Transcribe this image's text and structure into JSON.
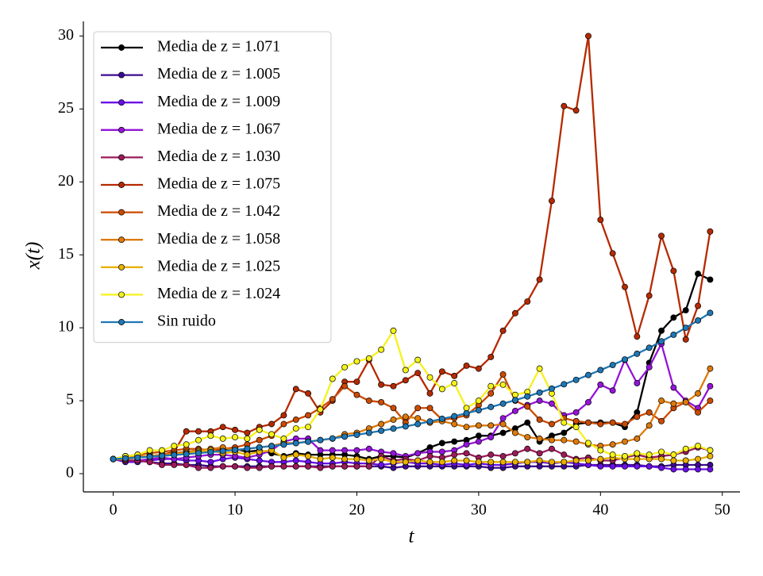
{
  "chart_data": {
    "type": "line",
    "xlabel": "t",
    "ylabel": "x(t)",
    "xlim": [
      -2.45,
      51.45
    ],
    "ylim": [
      -1.25,
      31
    ],
    "xticks": [
      0,
      10,
      20,
      30,
      40,
      50
    ],
    "yticks": [
      0,
      5,
      10,
      15,
      20,
      25,
      30
    ],
    "legend": "upper left",
    "x": [
      0,
      1,
      2,
      3,
      4,
      5,
      6,
      7,
      8,
      9,
      10,
      11,
      12,
      13,
      14,
      15,
      16,
      17,
      18,
      19,
      20,
      21,
      22,
      23,
      24,
      25,
      26,
      27,
      28,
      29,
      30,
      31,
      32,
      33,
      34,
      35,
      36,
      37,
      38,
      39,
      40,
      41,
      42,
      43,
      44,
      45,
      46,
      47,
      48,
      49
    ],
    "series": [
      {
        "name": "Media de z = 1.071",
        "color": "#000000",
        "values": [
          1,
          1.0,
          1.1,
          1.2,
          1.3,
          1.4,
          1.5,
          1.6,
          1.6,
          1.6,
          1.7,
          1.5,
          1.6,
          1.4,
          1.2,
          1.4,
          1.3,
          1.3,
          1.3,
          1.3,
          1.2,
          1.0,
          1.2,
          1.2,
          1.1,
          1.4,
          1.8,
          2.1,
          2.2,
          2.3,
          2.6,
          2.6,
          2.8,
          3.1,
          3.5,
          2.2,
          2.6,
          2.8,
          3.4,
          3.5,
          3.5,
          3.5,
          3.2,
          4.2,
          7.6,
          9.8,
          10.7,
          11.2,
          13.7,
          13.3
        ]
      },
      {
        "name": "Media de z = 1.005",
        "color": "#3d0a91",
        "values": [
          1,
          0.9,
          0.9,
          0.8,
          0.7,
          0.7,
          0.6,
          0.6,
          0.5,
          0.5,
          0.5,
          0.5,
          0.5,
          0.5,
          0.5,
          0.5,
          0.5,
          0.5,
          0.5,
          0.5,
          0.5,
          0.5,
          0.5,
          0.4,
          0.5,
          0.5,
          0.5,
          0.5,
          0.5,
          0.5,
          0.5,
          0.4,
          0.4,
          0.5,
          0.5,
          0.5,
          0.5,
          0.5,
          0.5,
          0.6,
          0.6,
          0.6,
          0.6,
          0.6,
          0.5,
          0.5,
          0.6,
          0.6,
          0.6,
          0.6
        ]
      },
      {
        "name": "Media de z = 1.009",
        "color": "#6a0ee8",
        "values": [
          1,
          0.8,
          0.8,
          0.9,
          1.0,
          1.0,
          0.9,
          0.9,
          0.8,
          1.0,
          1.1,
          1.0,
          0.9,
          0.8,
          0.8,
          0.9,
          0.8,
          0.7,
          0.7,
          0.8,
          0.7,
          0.7,
          0.6,
          0.7,
          0.8,
          0.7,
          0.7,
          0.6,
          0.7,
          0.6,
          0.7,
          0.6,
          0.6,
          0.7,
          0.8,
          0.8,
          0.7,
          0.8,
          0.7,
          0.6,
          0.5,
          0.5,
          0.5,
          0.5,
          0.5,
          0.4,
          0.3,
          0.3,
          0.3,
          0.3
        ]
      },
      {
        "name": "Media de z = 1.067",
        "color": "#9414d8",
        "values": [
          1,
          0.9,
          0.9,
          1.0,
          1.1,
          1.0,
          1.1,
          1.2,
          1.3,
          1.3,
          1.2,
          1.1,
          1.3,
          1.6,
          2.2,
          2.4,
          2.4,
          1.6,
          1.6,
          1.6,
          1.6,
          1.7,
          1.5,
          1.4,
          1.2,
          1.4,
          1.5,
          1.5,
          1.6,
          2.0,
          2.2,
          2.5,
          3.8,
          4.3,
          4.7,
          5.0,
          4.8,
          4.0,
          4.2,
          4.9,
          6.1,
          5.7,
          7.8,
          6.2,
          7.3,
          8.9,
          5.9,
          5.0,
          4.5,
          6.0
        ]
      },
      {
        "name": "Media de z = 1.030",
        "color": "#9b1b5a",
        "values": [
          1,
          0.9,
          0.9,
          0.8,
          0.6,
          0.6,
          0.6,
          0.4,
          0.4,
          0.5,
          0.5,
          0.4,
          0.4,
          0.5,
          0.5,
          0.5,
          0.5,
          0.4,
          0.5,
          0.5,
          0.5,
          0.5,
          1.2,
          0.9,
          1.0,
          0.9,
          1.2,
          1.1,
          1.3,
          1.4,
          1.1,
          1.3,
          1.2,
          1.4,
          1.7,
          1.4,
          1.7,
          1.3,
          1.0,
          1.1,
          0.9,
          0.9,
          1.1,
          1.3,
          1.1,
          1.2,
          1.3,
          1.5,
          1.8,
          1.6
        ]
      },
      {
        "name": "Media de z = 1.075",
        "color": "#b52a00",
        "values": [
          1,
          1.05,
          1.1,
          1.2,
          1.3,
          1.5,
          2.9,
          2.9,
          2.9,
          3.2,
          3.0,
          2.8,
          3.2,
          3.4,
          4.0,
          5.8,
          5.5,
          4.2,
          5.0,
          6.3,
          6.3,
          7.8,
          6.1,
          6.0,
          6.4,
          6.9,
          5.5,
          7.0,
          6.7,
          7.4,
          7.2,
          8.0,
          9.8,
          11.0,
          11.8,
          13.3,
          18.7,
          25.2,
          24.9,
          30.0,
          17.4,
          15.1,
          12.8,
          9.4,
          12.2,
          16.3,
          13.9,
          9.2,
          11.5,
          16.6
        ]
      },
      {
        "name": "Media de z = 1.042",
        "color": "#cc4a00",
        "values": [
          1,
          1.2,
          1.3,
          1.4,
          1.5,
          1.6,
          1.7,
          1.7,
          1.6,
          1.7,
          1.8,
          2.0,
          2.3,
          2.6,
          3.4,
          3.7,
          4.0,
          4.5,
          5.1,
          6.0,
          5.4,
          5.0,
          4.9,
          4.5,
          3.5,
          4.5,
          4.5,
          3.7,
          3.8,
          4.0,
          4.7,
          5.5,
          6.8,
          5.0,
          4.6,
          3.7,
          3.4,
          3.8,
          3.6,
          3.5,
          3.4,
          3.5,
          3.4,
          3.9,
          4.2,
          3.6,
          4.5,
          4.9,
          4.2,
          5.0
        ]
      },
      {
        "name": "Media de z = 1.058",
        "color": "#dc7a0a",
        "values": [
          1,
          1.1,
          1.2,
          1.2,
          1.3,
          1.4,
          1.5,
          1.6,
          1.7,
          1.8,
          1.6,
          1.7,
          1.8,
          1.9,
          2.1,
          2.1,
          2.2,
          2.3,
          2.4,
          2.7,
          2.8,
          3.1,
          3.4,
          3.7,
          3.9,
          3.8,
          3.5,
          3.6,
          3.4,
          3.2,
          3.3,
          3.3,
          3.4,
          2.8,
          2.5,
          2.4,
          2.3,
          2.3,
          2.2,
          2.0,
          1.9,
          2.0,
          2.2,
          2.4,
          3.3,
          5.0,
          4.8,
          4.9,
          5.5,
          7.2
        ]
      },
      {
        "name": "Media de z = 1.025",
        "color": "#e8b000",
        "values": [
          1,
          1.0,
          1.1,
          1.2,
          1.2,
          1.3,
          1.4,
          1.5,
          1.6,
          1.4,
          1.5,
          1.3,
          1.5,
          1.6,
          1.1,
          1.3,
          1.2,
          1.0,
          1.1,
          1.0,
          1.0,
          0.9,
          1.0,
          0.8,
          0.8,
          0.9,
          0.8,
          0.8,
          0.9,
          0.9,
          0.8,
          0.8,
          0.8,
          0.8,
          0.8,
          0.9,
          0.8,
          0.8,
          0.9,
          0.9,
          1.0,
          1.1,
          1.0,
          1.0,
          1.0,
          1.0,
          0.9,
          0.9,
          1.0,
          1.2
        ]
      },
      {
        "name": "Media de z = 1.024",
        "color": "#f5f21a",
        "values": [
          1,
          1.2,
          1.3,
          1.6,
          1.6,
          1.9,
          2.0,
          2.3,
          2.6,
          2.4,
          2.5,
          2.4,
          3.0,
          2.7,
          2.4,
          3.1,
          3.2,
          4.4,
          6.5,
          7.3,
          7.7,
          7.9,
          8.5,
          9.8,
          7.1,
          7.8,
          6.6,
          5.8,
          6.2,
          4.5,
          5.0,
          6.0,
          6.1,
          5.4,
          5.6,
          7.2,
          5.5,
          3.5,
          3.2,
          2.1,
          1.6,
          1.3,
          1.2,
          1.4,
          1.3,
          1.5,
          1.3,
          1.7,
          1.9,
          1.6
        ]
      },
      {
        "name": "Sin ruido",
        "color": "#1f77b4",
        "values": [
          1.0,
          1.05,
          1.1,
          1.16,
          1.22,
          1.28,
          1.34,
          1.41,
          1.48,
          1.55,
          1.63,
          1.71,
          1.8,
          1.89,
          1.99,
          2.09,
          2.19,
          2.3,
          2.42,
          2.54,
          2.66,
          2.8,
          2.94,
          3.09,
          3.24,
          3.4,
          3.58,
          3.76,
          3.94,
          4.14,
          4.35,
          4.57,
          4.8,
          5.04,
          5.29,
          5.56,
          5.83,
          6.13,
          6.43,
          6.76,
          7.1,
          7.45,
          7.83,
          8.22,
          8.63,
          9.07,
          9.52,
          10.0,
          10.5,
          11.02
        ]
      }
    ]
  }
}
